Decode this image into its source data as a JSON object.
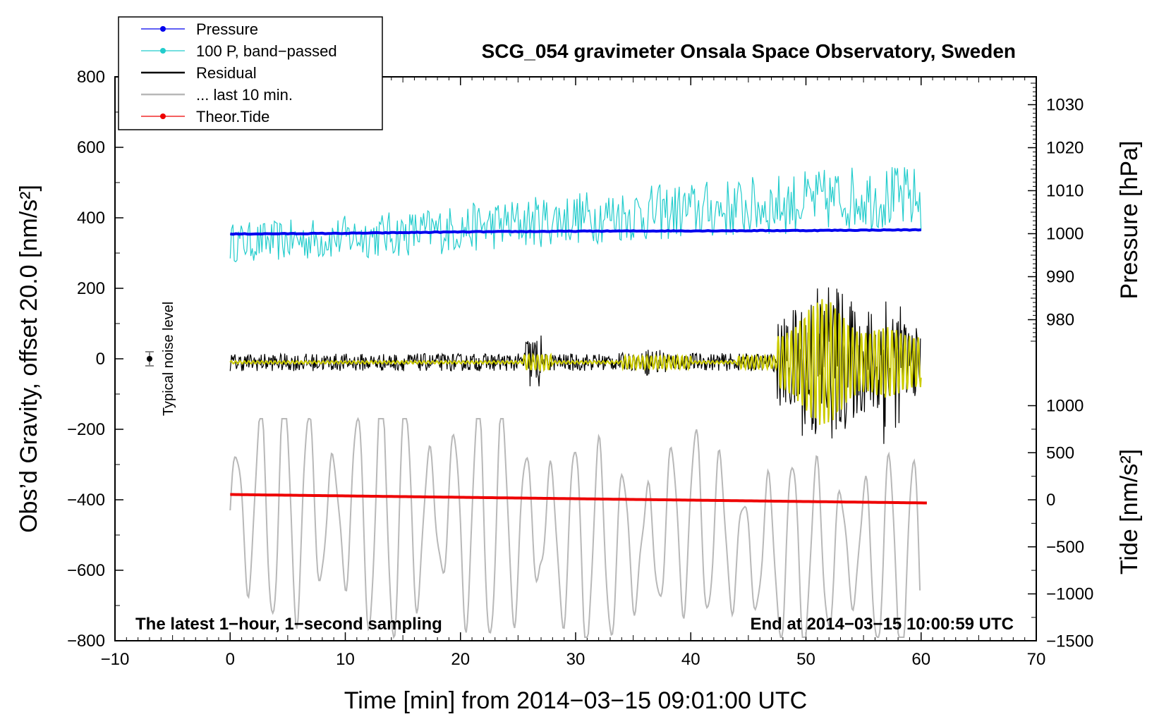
{
  "chart_data": {
    "type": "line",
    "title": "SCG_054 gravimeter Onsala Space Observatory, Sweden",
    "xlabel": "Time [min] from 2014−03−15 09:01:00 UTC",
    "ylabel_left": "Obs’d Gravity, offset 20.0 [nm/s²]",
    "ylabel_pressure": "Pressure [hPa]",
    "ylabel_tide": "Tide [nm/s²]",
    "xlim": [
      -10,
      70
    ],
    "ylim": [
      -800,
      800
    ],
    "x_ticks": [
      "−10",
      "0",
      "10",
      "20",
      "30",
      "40",
      "50",
      "60",
      "70"
    ],
    "x_tick_values": [
      -10,
      0,
      10,
      20,
      30,
      40,
      50,
      60,
      70
    ],
    "y_ticks": [
      "−800",
      "−600",
      "−400",
      "−200",
      "0",
      "200",
      "400",
      "600",
      "800"
    ],
    "y_tick_values": [
      -800,
      -600,
      -400,
      -200,
      0,
      200,
      400,
      600,
      800
    ],
    "pressure_axis": {
      "ticks": [
        "980",
        "990",
        "1000",
        "1010",
        "1020",
        "1030"
      ],
      "values": [
        980,
        990,
        1000,
        1010,
        1020,
        1030
      ],
      "gravity_at_1000": 355,
      "gravity_per_hpa": 12.2
    },
    "tide_axis": {
      "ticks": [
        "−1500",
        "−1000",
        "−500",
        "0",
        "500",
        "1000"
      ],
      "values": [
        -1500,
        -1000,
        -500,
        0,
        500,
        1000
      ],
      "gravity_at_0": -400,
      "gravity_per_unit": 0.267
    },
    "note_left": "The latest 1−hour, 1−second sampling",
    "note_right": "End at 2014−03−15 10:00:59 UTC",
    "noise_label": "Typical noise level",
    "noise_bar": {
      "x": -7,
      "y": 0,
      "err": 20
    },
    "legend": [
      {
        "label": "Pressure",
        "color": "#0000ee",
        "marker": true
      },
      {
        "label": "100 P, band−passed",
        "color": "#22cccc",
        "marker": true
      },
      {
        "label": "Residual",
        "color": "#000000",
        "marker": false
      },
      {
        "label": "... last 10 min.",
        "color": "#b8b8b8",
        "marker": false
      },
      {
        "label": "Theor.Tide",
        "color": "#ee0000",
        "marker": true
      }
    ],
    "series": [
      {
        "name": "Pressure",
        "color": "#0000ee",
        "x": [
          0,
          10,
          20,
          30,
          40,
          50,
          60
        ],
        "values": [
          354,
          356,
          360,
          362,
          363,
          364,
          366
        ]
      },
      {
        "name": "100 P, band−passed",
        "color": "#22cccc",
        "x": [
          0,
          5,
          10,
          15,
          20,
          25,
          30,
          35,
          40,
          45,
          50,
          55,
          60
        ],
        "values": [
          330,
          335,
          345,
          355,
          370,
          385,
          400,
          410,
          420,
          430,
          445,
          460,
          450
        ]
      },
      {
        "name": "Residual",
        "color": "#000000",
        "x": [
          0,
          10,
          20,
          25,
          26,
          30,
          35,
          40,
          45,
          47,
          48,
          50,
          52,
          54,
          56,
          57,
          58,
          60
        ],
        "values": [
          -10,
          -10,
          -10,
          -10,
          -10,
          -10,
          -8,
          -8,
          -10,
          -10,
          -15,
          -20,
          -10,
          -10,
          -15,
          -10,
          -10,
          -10
        ]
      },
      {
        "name": "... last 10 min.",
        "color": "#b8b8b8",
        "x": [
          0,
          5,
          10,
          15,
          20,
          25,
          30,
          35,
          40,
          45,
          50,
          55,
          60
        ],
        "values": [
          -310,
          -300,
          -310,
          -320,
          -330,
          -350,
          -400,
          -420,
          -330,
          -430,
          -430,
          -430,
          -480
        ]
      },
      {
        "name": "Theor.Tide",
        "color": "#ee0000",
        "x": [
          0,
          10,
          20,
          30,
          40,
          50,
          60.5
        ],
        "values": [
          -385,
          -389,
          -393,
          -397,
          -401,
          -405,
          -409
        ]
      },
      {
        "name": "Residual band-passed",
        "color": "#cccc00",
        "x": [
          0,
          10,
          20,
          30,
          40,
          47,
          50,
          55,
          60
        ],
        "values": [
          -10,
          -10,
          -10,
          -10,
          -10,
          -10,
          -10,
          -10,
          -10
        ]
      }
    ]
  }
}
